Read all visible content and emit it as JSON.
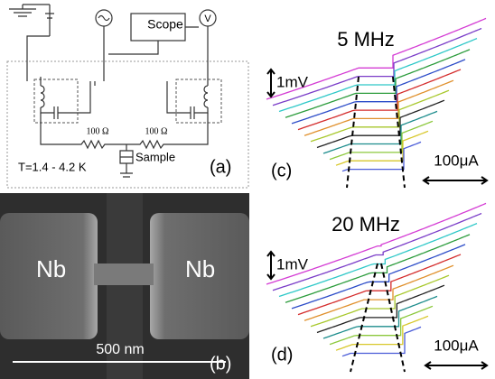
{
  "panels": {
    "a": {
      "label": "(a)",
      "scope": "Scope",
      "voltmeter": "V",
      "resistors": [
        "100 Ω",
        "100 Ω"
      ],
      "sample": "Sample",
      "temperature": "T=1.4 - 4.2 K"
    },
    "b": {
      "label": "(b)",
      "materials": [
        "Nb",
        "Nb"
      ],
      "scale_bar": "500 nm"
    },
    "c": {
      "label": "(c)",
      "title": "5 MHz",
      "voltage_scale": "1mV",
      "current_scale": "100μA"
    },
    "d": {
      "label": "(d)",
      "title": "20 MHz",
      "voltage_scale": "1mV",
      "current_scale": "100μA"
    }
  }
}
